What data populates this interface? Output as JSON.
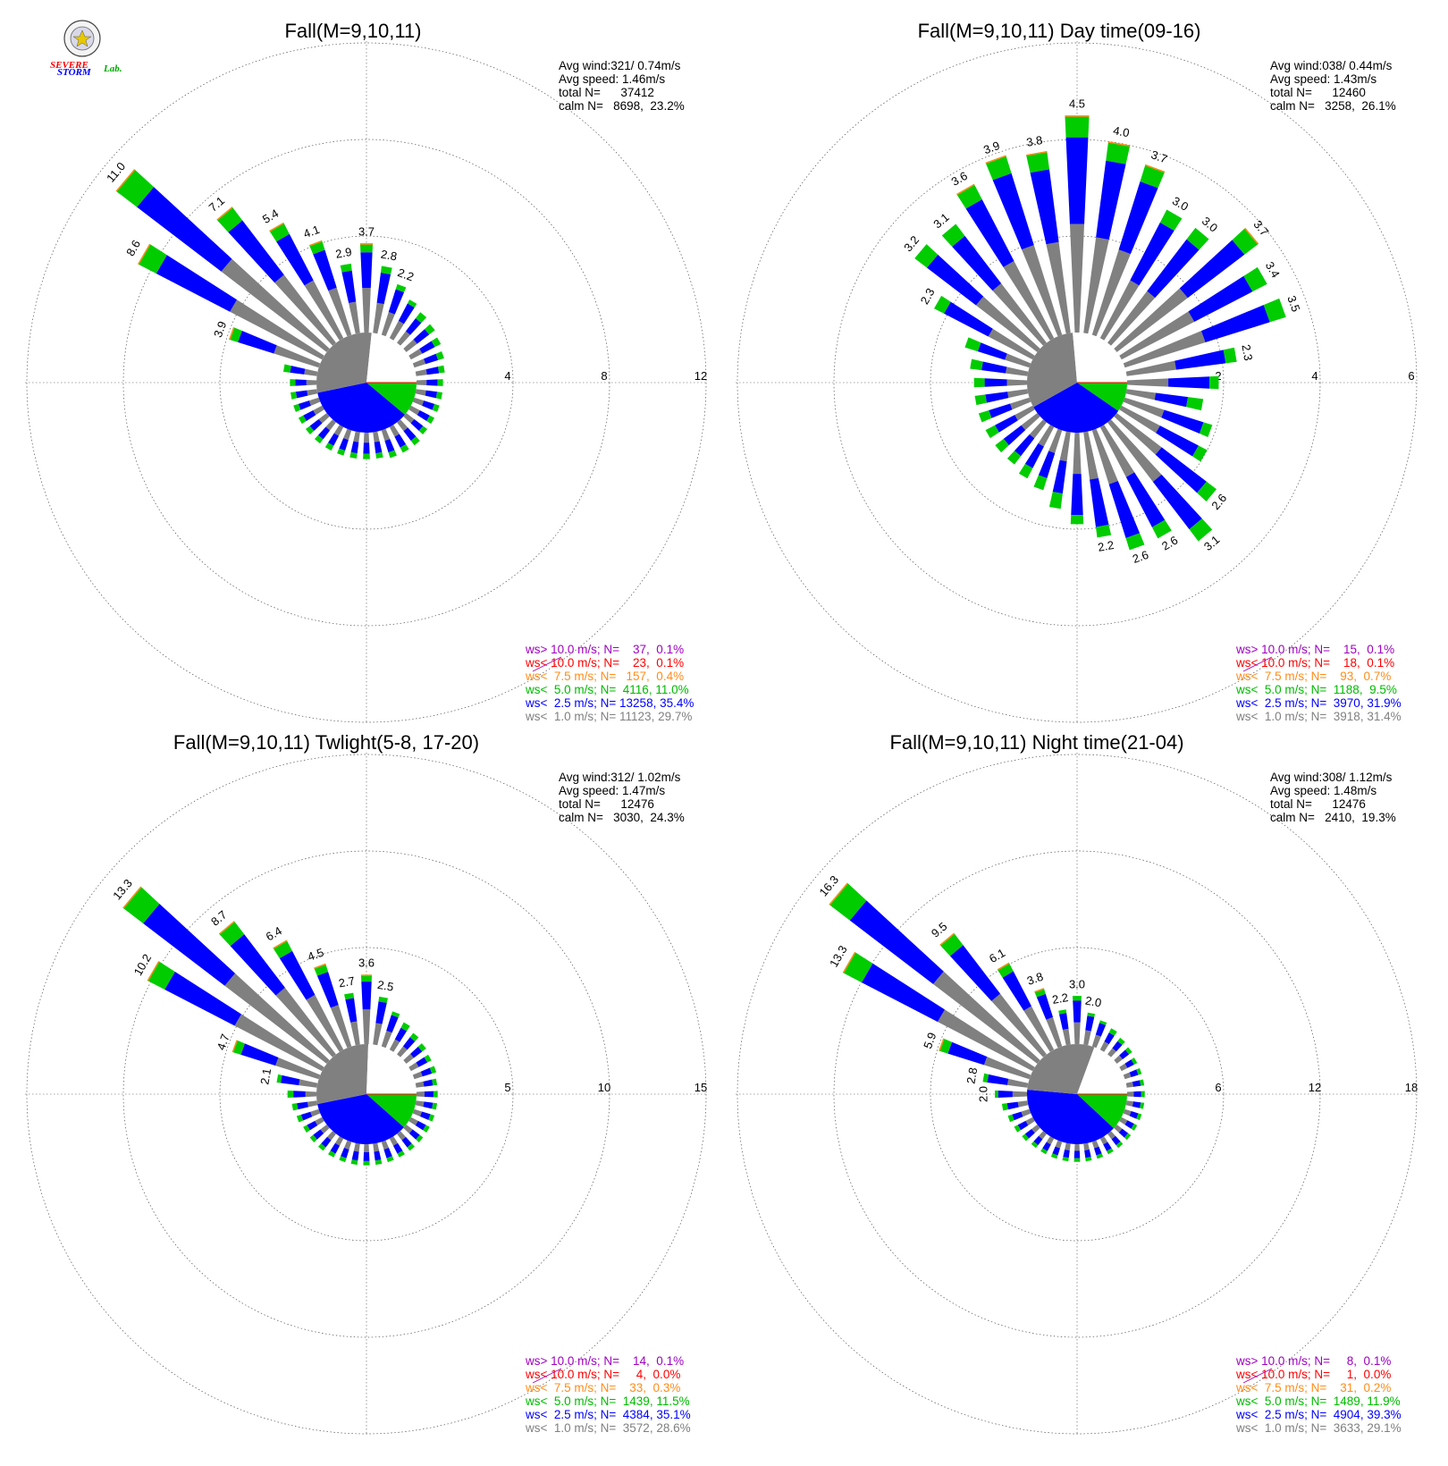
{
  "logo": {
    "text_severe": "SEVERE",
    "text_storm": "STORM",
    "text_lab": "Lab.",
    "colors": {
      "s1": "#ff0000",
      "s2": "#0000ff",
      "lab": "#00aa00"
    }
  },
  "colors": {
    "calm": "#ffffff",
    "lt1": "#808080",
    "lt2_5": "#0000ff",
    "lt5": "#00cc00",
    "lt7_5": "#ff8c1a",
    "lt10": "#ff0000",
    "gt10": "#a000c0"
  },
  "chart_data": [
    {
      "type": "windrose",
      "title": "Fall(M=9,10,11)",
      "stats": {
        "avg_wind": "Avg wind:321/ 0.74m/s",
        "avg_speed": "Avg speed: 1.46m/s",
        "total": "total N=      37412",
        "calm": "calm N=   8698,  23.2%"
      },
      "ring_max": 12,
      "ring_ticks": [
        "4",
        "8",
        "12"
      ],
      "calm_pct": 23.2,
      "labels": {
        "0": "3.7",
        "10": "2.8",
        "20": "2.2",
        "290": "3.9",
        "300": "8.6",
        "310": "11.0",
        "320": "7.1",
        "330": "5.4",
        "340": "4.1",
        "350": "2.9"
      },
      "sectors": [
        {
          "dir": 0,
          "total": 3.7
        },
        {
          "dir": 10,
          "total": 2.8
        },
        {
          "dir": 20,
          "total": 2.2
        },
        {
          "dir": 30,
          "total": 1.8
        },
        {
          "dir": 40,
          "total": 1.6
        },
        {
          "dir": 50,
          "total": 1.5
        },
        {
          "dir": 60,
          "total": 1.4
        },
        {
          "dir": 70,
          "total": 1.3
        },
        {
          "dir": 80,
          "total": 1.2
        },
        {
          "dir": 90,
          "total": 1.1
        },
        {
          "dir": 100,
          "total": 1.1
        },
        {
          "dir": 110,
          "total": 1.1
        },
        {
          "dir": 120,
          "total": 1.1
        },
        {
          "dir": 130,
          "total": 1.1
        },
        {
          "dir": 140,
          "total": 1.2
        },
        {
          "dir": 150,
          "total": 1.2
        },
        {
          "dir": 160,
          "total": 1.2
        },
        {
          "dir": 170,
          "total": 1.1
        },
        {
          "dir": 180,
          "total": 1.1
        },
        {
          "dir": 190,
          "total": 1.1
        },
        {
          "dir": 200,
          "total": 1.1
        },
        {
          "dir": 210,
          "total": 1.1
        },
        {
          "dir": 220,
          "total": 1.1
        },
        {
          "dir": 230,
          "total": 1.1
        },
        {
          "dir": 240,
          "total": 1.1
        },
        {
          "dir": 250,
          "total": 1.1
        },
        {
          "dir": 260,
          "total": 1.1
        },
        {
          "dir": 270,
          "total": 1.1
        },
        {
          "dir": 280,
          "total": 1.4
        },
        {
          "dir": 290,
          "total": 3.9
        },
        {
          "dir": 300,
          "total": 8.6
        },
        {
          "dir": 310,
          "total": 11.0
        },
        {
          "dir": 320,
          "total": 7.1
        },
        {
          "dir": 330,
          "total": 5.4
        },
        {
          "dir": 340,
          "total": 4.1
        },
        {
          "dir": 350,
          "total": 2.9
        }
      ],
      "legend": [
        {
          "label": "ws> 10.0 m/s; N=    37,  0.1%",
          "color": "#a000c0"
        },
        {
          "label": "ws< 10.0 m/s; N=    23,  0.1%",
          "color": "#ff0000"
        },
        {
          "label": "ws<  7.5 m/s; N=   157,  0.4%",
          "color": "#ff8c1a"
        },
        {
          "label": "ws<  5.0 m/s; N=  4116, 11.0%",
          "color": "#00bb00"
        },
        {
          "label": "ws<  2.5 m/s; N= 13258, 35.4%",
          "color": "#0000ff"
        },
        {
          "label": "ws<  1.0 m/s; N= 11123, 29.7%",
          "color": "#808080"
        }
      ],
      "pie": {
        "lt1": 29.7,
        "lt2_5": 35.4,
        "lt5": 11.0
      }
    },
    {
      "type": "windrose",
      "title": "Fall(M=9,10,11) Day time(09-16)",
      "stats": {
        "avg_wind": "Avg wind:038/ 0.44m/s",
        "avg_speed": "Avg speed: 1.43m/s",
        "total": "total N=      12460",
        "calm": "calm N=   3258,  26.1%"
      },
      "ring_max": 6,
      "ring_ticks": [
        "2",
        "4",
        "6"
      ],
      "calm_pct": 26.1,
      "labels": {
        "0": "4.5",
        "10": "4.0",
        "20": "3.7",
        "30": "3.0",
        "40": "3.0",
        "50": "3.7",
        "60": "3.4",
        "70": "3.5",
        "80": "2.3",
        "130": "2.6",
        "140": "3.1",
        "150": "2.6",
        "160": "2.6",
        "170": "2.2",
        "300": "2.3",
        "310": "3.2",
        "320": "3.1",
        "330": "3.6",
        "340": "3.9",
        "350": "3.8"
      },
      "sectors": [
        {
          "dir": 0,
          "total": 4.5
        },
        {
          "dir": 10,
          "total": 4.0
        },
        {
          "dir": 20,
          "total": 3.7
        },
        {
          "dir": 30,
          "total": 3.0
        },
        {
          "dir": 40,
          "total": 3.0
        },
        {
          "dir": 50,
          "total": 3.7
        },
        {
          "dir": 60,
          "total": 3.4
        },
        {
          "dir": 70,
          "total": 3.5
        },
        {
          "dir": 80,
          "total": 2.3
        },
        {
          "dir": 90,
          "total": 1.9
        },
        {
          "dir": 100,
          "total": 1.6
        },
        {
          "dir": 110,
          "total": 1.9
        },
        {
          "dir": 120,
          "total": 2.0
        },
        {
          "dir": 130,
          "total": 2.6
        },
        {
          "dir": 140,
          "total": 3.1
        },
        {
          "dir": 150,
          "total": 2.6
        },
        {
          "dir": 160,
          "total": 2.6
        },
        {
          "dir": 170,
          "total": 2.2
        },
        {
          "dir": 180,
          "total": 1.9
        },
        {
          "dir": 190,
          "total": 1.6
        },
        {
          "dir": 200,
          "total": 1.3
        },
        {
          "dir": 210,
          "total": 1.2
        },
        {
          "dir": 220,
          "total": 1.1
        },
        {
          "dir": 230,
          "total": 1.1
        },
        {
          "dir": 240,
          "total": 1.1
        },
        {
          "dir": 250,
          "total": 1.1
        },
        {
          "dir": 260,
          "total": 1.1
        },
        {
          "dir": 270,
          "total": 1.1
        },
        {
          "dir": 280,
          "total": 1.2
        },
        {
          "dir": 290,
          "total": 1.4
        },
        {
          "dir": 300,
          "total": 2.3
        },
        {
          "dir": 310,
          "total": 3.2
        },
        {
          "dir": 320,
          "total": 3.1
        },
        {
          "dir": 330,
          "total": 3.6
        },
        {
          "dir": 340,
          "total": 3.9
        },
        {
          "dir": 350,
          "total": 3.8
        }
      ],
      "legend": [
        {
          "label": "ws> 10.0 m/s; N=    15,  0.1%",
          "color": "#a000c0"
        },
        {
          "label": "ws< 10.0 m/s; N=    18,  0.1%",
          "color": "#ff0000"
        },
        {
          "label": "ws<  7.5 m/s; N=    93,  0.7%",
          "color": "#ff8c1a"
        },
        {
          "label": "ws<  5.0 m/s; N=  1188,  9.5%",
          "color": "#00bb00"
        },
        {
          "label": "ws<  2.5 m/s; N=  3970, 31.9%",
          "color": "#0000ff"
        },
        {
          "label": "ws<  1.0 m/s; N=  3918, 31.4%",
          "color": "#808080"
        }
      ],
      "pie": {
        "lt1": 31.4,
        "lt2_5": 31.9,
        "lt5": 9.5
      }
    },
    {
      "type": "windrose",
      "title": "Fall(M=9,10,11) Twlight(5-8, 17-20)",
      "stats": {
        "avg_wind": "Avg wind:312/ 1.02m/s",
        "avg_speed": "Avg speed: 1.47m/s",
        "total": "total N=      12476",
        "calm": "calm N=   3030,  24.3%"
      },
      "ring_max": 15,
      "ring_ticks": [
        "5",
        "10",
        "15"
      ],
      "calm_pct": 24.3,
      "labels": {
        "0": "3.6",
        "10": "2.5",
        "280": "2.1",
        "290": "4.7",
        "300": "10.2",
        "310": "13.3",
        "320": "8.7",
        "330": "6.4",
        "340": "4.5",
        "350": "2.7"
      },
      "sectors": [
        {
          "dir": 0,
          "total": 3.6
        },
        {
          "dir": 10,
          "total": 2.5
        },
        {
          "dir": 20,
          "total": 1.9
        },
        {
          "dir": 30,
          "total": 1.6
        },
        {
          "dir": 40,
          "total": 1.4
        },
        {
          "dir": 50,
          "total": 1.3
        },
        {
          "dir": 60,
          "total": 1.2
        },
        {
          "dir": 70,
          "total": 1.2
        },
        {
          "dir": 80,
          "total": 1.1
        },
        {
          "dir": 90,
          "total": 1.1
        },
        {
          "dir": 100,
          "total": 1.1
        },
        {
          "dir": 110,
          "total": 1.1
        },
        {
          "dir": 120,
          "total": 1.1
        },
        {
          "dir": 130,
          "total": 1.1
        },
        {
          "dir": 140,
          "total": 1.1
        },
        {
          "dir": 150,
          "total": 1.1
        },
        {
          "dir": 160,
          "total": 1.1
        },
        {
          "dir": 170,
          "total": 1.1
        },
        {
          "dir": 180,
          "total": 1.1
        },
        {
          "dir": 190,
          "total": 1.1
        },
        {
          "dir": 200,
          "total": 1.1
        },
        {
          "dir": 210,
          "total": 1.1
        },
        {
          "dir": 220,
          "total": 1.1
        },
        {
          "dir": 230,
          "total": 1.1
        },
        {
          "dir": 240,
          "total": 1.1
        },
        {
          "dir": 250,
          "total": 1.2
        },
        {
          "dir": 260,
          "total": 1.3
        },
        {
          "dir": 270,
          "total": 1.5
        },
        {
          "dir": 280,
          "total": 2.1
        },
        {
          "dir": 290,
          "total": 4.7
        },
        {
          "dir": 300,
          "total": 10.2
        },
        {
          "dir": 310,
          "total": 13.3
        },
        {
          "dir": 320,
          "total": 8.7
        },
        {
          "dir": 330,
          "total": 6.4
        },
        {
          "dir": 340,
          "total": 4.5
        },
        {
          "dir": 350,
          "total": 2.7
        }
      ],
      "legend": [
        {
          "label": "ws> 10.0 m/s; N=    14,  0.1%",
          "color": "#a000c0"
        },
        {
          "label": "ws< 10.0 m/s; N=     4,  0.0%",
          "color": "#ff0000"
        },
        {
          "label": "ws<  7.5 m/s; N=    33,  0.3%",
          "color": "#ff8c1a"
        },
        {
          "label": "ws<  5.0 m/s; N=  1439, 11.5%",
          "color": "#00bb00"
        },
        {
          "label": "ws<  2.5 m/s; N=  4384, 35.1%",
          "color": "#0000ff"
        },
        {
          "label": "ws<  1.0 m/s; N=  3572, 28.6%",
          "color": "#808080"
        }
      ],
      "pie": {
        "lt1": 28.6,
        "lt2_5": 35.1,
        "lt5": 11.5
      }
    },
    {
      "type": "windrose",
      "title": "Fall(M=9,10,11) Night time(21-04)",
      "stats": {
        "avg_wind": "Avg wind:308/ 1.12m/s",
        "avg_speed": "Avg speed: 1.48m/s",
        "total": "total N=      12476",
        "calm": "calm N=   2410,  19.3%"
      },
      "ring_max": 18,
      "ring_ticks": [
        "6",
        "12",
        "18"
      ],
      "calm_pct": 19.3,
      "labels": {
        "0": "3.0",
        "10": "2.0",
        "270": "2.0",
        "280": "2.8",
        "290": "5.9",
        "300": "13.3",
        "310": "16.3",
        "320": "9.5",
        "330": "6.1",
        "340": "3.8",
        "350": "2.2"
      },
      "sectors": [
        {
          "dir": 0,
          "total": 3.0
        },
        {
          "dir": 10,
          "total": 2.0
        },
        {
          "dir": 20,
          "total": 1.7
        },
        {
          "dir": 30,
          "total": 1.5
        },
        {
          "dir": 40,
          "total": 1.3
        },
        {
          "dir": 50,
          "total": 1.2
        },
        {
          "dir": 60,
          "total": 1.1
        },
        {
          "dir": 70,
          "total": 1.1
        },
        {
          "dir": 80,
          "total": 1.1
        },
        {
          "dir": 90,
          "total": 1.1
        },
        {
          "dir": 100,
          "total": 1.1
        },
        {
          "dir": 110,
          "total": 1.1
        },
        {
          "dir": 120,
          "total": 1.1
        },
        {
          "dir": 130,
          "total": 1.1
        },
        {
          "dir": 140,
          "total": 1.1
        },
        {
          "dir": 150,
          "total": 1.1
        },
        {
          "dir": 160,
          "total": 1.1
        },
        {
          "dir": 170,
          "total": 1.1
        },
        {
          "dir": 180,
          "total": 1.1
        },
        {
          "dir": 190,
          "total": 1.1
        },
        {
          "dir": 200,
          "total": 1.1
        },
        {
          "dir": 210,
          "total": 1.1
        },
        {
          "dir": 220,
          "total": 1.1
        },
        {
          "dir": 230,
          "total": 1.2
        },
        {
          "dir": 240,
          "total": 1.3
        },
        {
          "dir": 250,
          "total": 1.4
        },
        {
          "dir": 260,
          "total": 1.6
        },
        {
          "dir": 270,
          "total": 2.0
        },
        {
          "dir": 280,
          "total": 2.8
        },
        {
          "dir": 290,
          "total": 5.9
        },
        {
          "dir": 300,
          "total": 13.3
        },
        {
          "dir": 310,
          "total": 16.3
        },
        {
          "dir": 320,
          "total": 9.5
        },
        {
          "dir": 330,
          "total": 6.1
        },
        {
          "dir": 340,
          "total": 3.8
        },
        {
          "dir": 350,
          "total": 2.2
        }
      ],
      "legend": [
        {
          "label": "ws> 10.0 m/s; N=     8,  0.1%",
          "color": "#a000c0"
        },
        {
          "label": "ws< 10.0 m/s; N=     1,  0.0%",
          "color": "#ff0000"
        },
        {
          "label": "ws<  7.5 m/s; N=    31,  0.2%",
          "color": "#ff8c1a"
        },
        {
          "label": "ws<  5.0 m/s; N=  1489, 11.9%",
          "color": "#00bb00"
        },
        {
          "label": "ws<  2.5 m/s; N=  4904, 39.3%",
          "color": "#0000ff"
        },
        {
          "label": "ws<  1.0 m/s; N=  3633, 29.1%",
          "color": "#808080"
        }
      ],
      "pie": {
        "lt1": 29.1,
        "lt2_5": 39.3,
        "lt5": 11.9
      }
    }
  ]
}
